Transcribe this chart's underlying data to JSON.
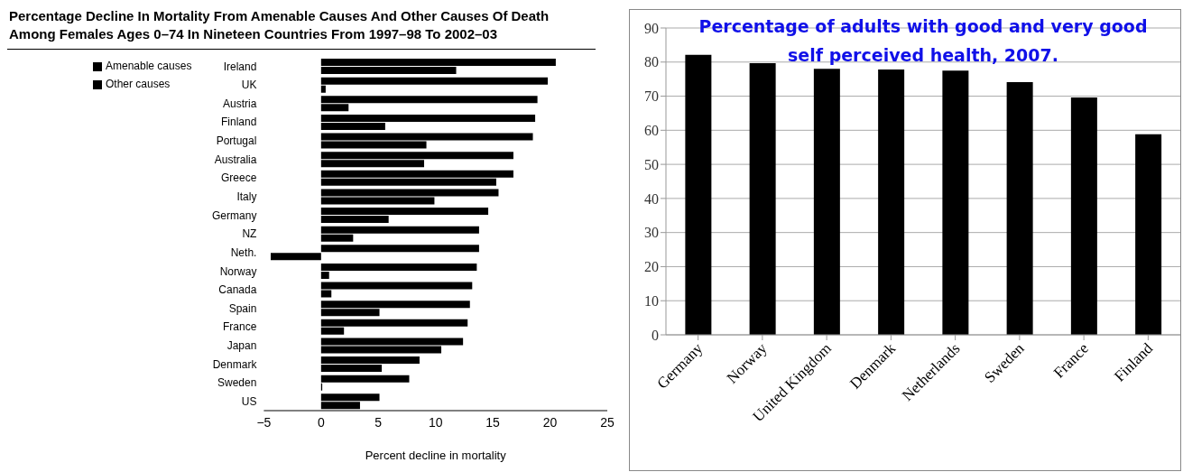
{
  "chart_data": [
    {
      "type": "bar",
      "orientation": "horizontal",
      "title": "Percentage Decline In Mortality From Amenable Causes And Other Causes Of Death Among Females Ages 0–74 In Nineteen Countries From 1997–98 To 2002–03",
      "xlabel": "Percent decline in mortality",
      "categories": [
        "Ireland",
        "UK",
        "Austria",
        "Finland",
        "Portugal",
        "Australia",
        "Greece",
        "Italy",
        "Germany",
        "NZ",
        "Neth.",
        "Norway",
        "Canada",
        "Spain",
        "France",
        "Japan",
        "Denmark",
        "Sweden",
        "US"
      ],
      "series": [
        {
          "name": "Amenable causes",
          "color": "#000000",
          "values": [
            20.5,
            19.8,
            18.9,
            18.7,
            18.5,
            16.8,
            16.8,
            15.5,
            14.6,
            13.8,
            13.8,
            13.6,
            13.2,
            13.0,
            12.8,
            12.4,
            8.6,
            7.7,
            5.1
          ]
        },
        {
          "name": "Other causes",
          "color": "#000000",
          "values": [
            11.8,
            0.4,
            2.4,
            5.6,
            9.2,
            9.0,
            15.3,
            9.9,
            5.9,
            2.8,
            -4.4,
            0.7,
            0.9,
            5.1,
            2.0,
            10.5,
            5.3,
            0.1,
            3.4
          ]
        }
      ],
      "xlim": [
        -5,
        25
      ],
      "xticks": [
        {
          "value": -5,
          "label": "−5"
        },
        0,
        5,
        10,
        15,
        20,
        25
      ],
      "legend": "top left",
      "grid": false
    },
    {
      "type": "bar",
      "title": "Percentage of adults with good and very good self perceived health, 2007.",
      "categories": [
        "Germany",
        "Norway",
        "United Kingdom",
        "Denmark",
        "Netherlands",
        "Sweden",
        "France",
        "Finland"
      ],
      "values": [
        82.1,
        79.7,
        78.0,
        77.8,
        77.5,
        74.1,
        69.6,
        58.8
      ],
      "color": "#000000",
      "ylim": [
        0,
        90
      ],
      "yticks": [
        0,
        10,
        20,
        30,
        40,
        50,
        60,
        70,
        80,
        90
      ],
      "grid": "y"
    }
  ]
}
